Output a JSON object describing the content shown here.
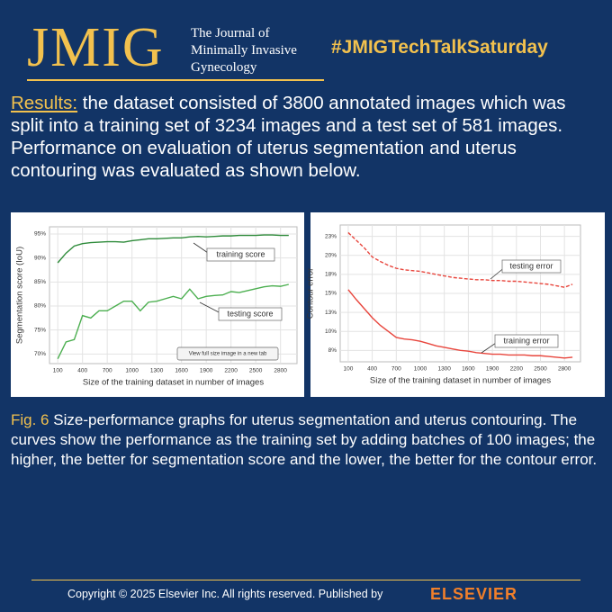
{
  "header": {
    "logo": "JMIG",
    "journal": [
      "The Journal of",
      "Minimally Invasive",
      "Gynecology"
    ],
    "hashtag": "#JMIGTechTalkSaturday"
  },
  "results": {
    "label": "Results:",
    "text": "the dataset consisted of 3800 annotated images which was split into a training set of 3234 images and a test set of 581 images. Performance on evaluation of uterus segmentation and uterus contouring was evaluated as shown below."
  },
  "chart_data": [
    {
      "type": "line",
      "x_label": "Size of the training dataset in number of images",
      "y_label": "Segmentation score (IoU)",
      "x": [
        100,
        200,
        300,
        400,
        500,
        600,
        700,
        800,
        900,
        1000,
        1100,
        1200,
        1300,
        1400,
        1500,
        1600,
        1700,
        1800,
        1900,
        2000,
        2100,
        2200,
        2300,
        2400,
        2500,
        2600,
        2700,
        2800,
        2900
      ],
      "xlim": [
        0,
        3000
      ],
      "xticks": [
        100,
        400,
        700,
        1000,
        1300,
        1600,
        1900,
        2200,
        2500,
        2800
      ],
      "ylim": [
        68,
        96.5
      ],
      "yticks": [
        {
          "value": 70,
          "label": "70%"
        },
        {
          "value": 75,
          "label": "75%"
        },
        {
          "value": 80,
          "label": "80%"
        },
        {
          "value": 85,
          "label": "85%"
        },
        {
          "value": 90,
          "label": "90%"
        },
        {
          "value": 95,
          "label": "95%"
        }
      ],
      "grid": true,
      "series": [
        {
          "name": "training score",
          "color": "#2e8b3a",
          "style": "solid",
          "values": [
            89,
            91,
            92.5,
            93,
            93.2,
            93.3,
            93.4,
            93.4,
            93.3,
            93.6,
            93.8,
            94,
            94,
            94.1,
            94.2,
            94.2,
            94.4,
            94.5,
            94.4,
            94.5,
            94.6,
            94.6,
            94.7,
            94.7,
            94.7,
            94.8,
            94.8,
            94.7,
            94.7
          ]
        },
        {
          "name": "testing score",
          "color": "#4caf50",
          "style": "solid",
          "values": [
            69,
            72.5,
            73,
            78,
            77.5,
            79,
            79,
            80,
            81,
            81,
            79,
            80.8,
            81,
            81.5,
            82,
            81.5,
            83.5,
            81.5,
            82,
            82.2,
            82.3,
            83,
            82.8,
            83.2,
            83.6,
            84,
            84.2,
            84.1,
            84.5
          ]
        }
      ],
      "annotations": [
        "training score",
        "testing score",
        "View full size image in a new tab"
      ]
    },
    {
      "type": "line",
      "x_label": "Size of the training dataset in number of images",
      "y_label": "Contour error",
      "x": [
        100,
        200,
        300,
        400,
        500,
        600,
        700,
        800,
        900,
        1000,
        1100,
        1200,
        1300,
        1400,
        1500,
        1600,
        1700,
        1800,
        1900,
        2000,
        2100,
        2200,
        2300,
        2400,
        2500,
        2600,
        2700,
        2800,
        2900
      ],
      "xlim": [
        0,
        3000
      ],
      "xticks": [
        100,
        400,
        700,
        1000,
        1300,
        1600,
        1900,
        2200,
        2500,
        2800
      ],
      "ylim": [
        6,
        24
      ],
      "yticks": [
        {
          "value": 7.5,
          "label": "8%"
        },
        {
          "value": 10,
          "label": "10%"
        },
        {
          "value": 12.5,
          "label": "13%"
        },
        {
          "value": 15,
          "label": "15%"
        },
        {
          "value": 17.5,
          "label": "18%"
        },
        {
          "value": 20,
          "label": "20%"
        },
        {
          "value": 22.5,
          "label": "23%"
        }
      ],
      "grid": true,
      "series": [
        {
          "name": "testing error",
          "color": "#e8453c",
          "style": "dashed",
          "values": [
            23,
            22,
            21,
            19.8,
            19.2,
            18.7,
            18.3,
            18.1,
            18,
            17.9,
            17.7,
            17.5,
            17.3,
            17.1,
            17,
            16.9,
            16.8,
            16.8,
            16.7,
            16.7,
            16.6,
            16.6,
            16.5,
            16.4,
            16.3,
            16.2,
            16,
            15.8,
            16.2
          ]
        },
        {
          "name": "training error",
          "color": "#e8453c",
          "style": "solid",
          "values": [
            15.5,
            14.2,
            13,
            11.8,
            10.8,
            10,
            9.2,
            9,
            8.9,
            8.7,
            8.4,
            8.1,
            7.9,
            7.7,
            7.5,
            7.4,
            7.2,
            7.1,
            7,
            7,
            6.9,
            6.9,
            6.9,
            6.8,
            6.8,
            6.7,
            6.6,
            6.5,
            6.6
          ]
        }
      ],
      "annotations": [
        "testing error",
        "training error"
      ]
    }
  ],
  "caption": {
    "label": "Fig. 6",
    "text": "Size-performance graphs for uterus segmentation and uterus contouring. The curves show the performance as the training set by adding batches of 100 images; the higher, the better for segmentation score and the lower, the better for the contour error."
  },
  "footer": {
    "copyright": "Copyright © 2025 Elsevier Inc. All rights reserved. Published by",
    "publisher": "ELSEVIER"
  }
}
